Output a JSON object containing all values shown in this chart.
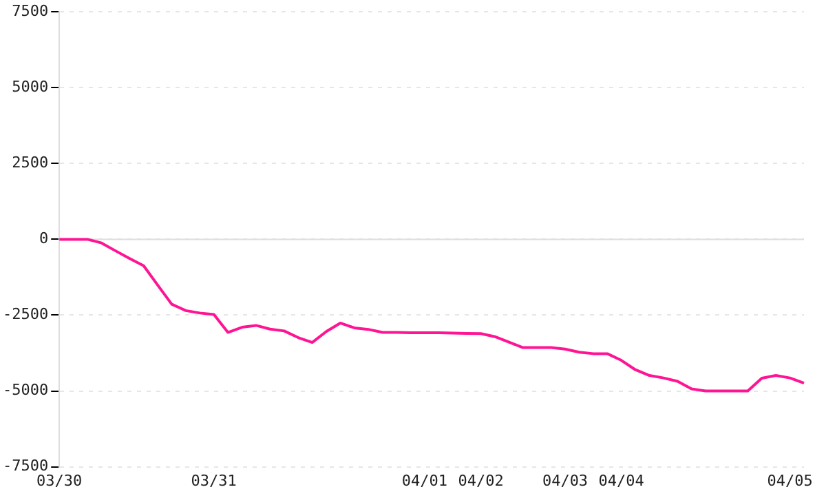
{
  "chart_data": {
    "type": "line",
    "categories": [
      "03/30",
      null,
      null,
      null,
      null,
      null,
      null,
      null,
      null,
      null,
      null,
      "03/31",
      null,
      null,
      null,
      null,
      null,
      null,
      null,
      null,
      null,
      null,
      null,
      null,
      null,
      null,
      "04/01",
      null,
      null,
      null,
      "04/02",
      null,
      null,
      null,
      null,
      null,
      "04/03",
      null,
      null,
      null,
      "04/04",
      null,
      null,
      null,
      null,
      null,
      null,
      null,
      null,
      null,
      null,
      null,
      "04/05",
      null
    ],
    "series": [
      {
        "color": "#ff1493",
        "values": [
          0,
          0,
          0,
          -120,
          -380,
          -630,
          -870,
          -1510,
          -2140,
          -2350,
          -2430,
          -2480,
          -3070,
          -2900,
          -2840,
          -2960,
          -3020,
          -3240,
          -3400,
          -3040,
          -2760,
          -2920,
          -2970,
          -3070,
          -3070,
          -3080,
          -3080,
          -3080,
          -3090,
          -3100,
          -3110,
          -3210,
          -3390,
          -3570,
          -3570,
          -3570,
          -3620,
          -3720,
          -3770,
          -3770,
          -3990,
          -4300,
          -4490,
          -4570,
          -4680,
          -4930,
          -5000,
          -5000,
          -5000,
          -5000,
          -4580,
          -4490,
          -4570,
          -4740
        ]
      }
    ],
    "ylim": [
      -7500,
      7500
    ],
    "yticks": [
      -7500,
      -5000,
      -2500,
      0,
      2500,
      5000,
      7500
    ],
    "grid": "y",
    "legend": false,
    "marker": "none",
    "line_style": "solid",
    "ref_lines": [
      {
        "axis": "y",
        "value": 0,
        "color": "#dddddd"
      }
    ]
  }
}
